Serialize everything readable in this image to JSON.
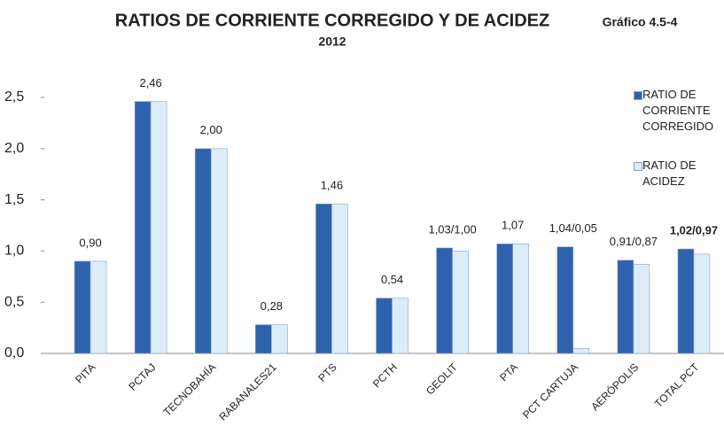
{
  "chart_data": {
    "type": "bar",
    "title": "RATIOS DE CORRIENTE CORREGIDO Y DE ACIDEZ",
    "subtitle": "2012",
    "annotation": "Gráfico 4.5-4",
    "categories": [
      "PITA",
      "PCTAJ",
      "TECNOBAHÍA",
      "RABANALES21",
      "PTS",
      "PCTH",
      "GEOLIT",
      "PTA",
      "PCT CARTUJA",
      "AERÓPOLIS",
      "TOTAL PCT"
    ],
    "series": [
      {
        "name": "RATIO DE CORRIENTE CORREGIDO",
        "color": "#2f62ad",
        "values": [
          0.9,
          2.46,
          2.0,
          0.28,
          1.46,
          0.54,
          1.03,
          1.07,
          1.04,
          0.91,
          1.02
        ],
        "value_labels": [
          "0,90",
          "2,46",
          "2,00",
          "0,28",
          "1,46",
          "0,54",
          "1,03/1,00",
          "1,07",
          "1,04/0,05",
          "0,91/0,87",
          "1,02/0,97"
        ]
      },
      {
        "name": "RATIO DE ACIDEZ",
        "color": "#dcedf8",
        "values": [
          0.9,
          2.46,
          2.0,
          0.28,
          1.46,
          0.54,
          1.0,
          1.07,
          0.05,
          0.87,
          0.97
        ]
      }
    ],
    "ylim": [
      0,
      2.5
    ],
    "yticks": [
      {
        "value": 0,
        "label": "0,0"
      },
      {
        "value": 0.5,
        "label": "0,5"
      },
      {
        "value": 1,
        "label": "1,0"
      },
      {
        "value": 1.5,
        "label": "1,5"
      },
      {
        "value": 2,
        "label": "2,0"
      },
      {
        "value": 2.5,
        "label": "2,5"
      }
    ],
    "grid": false,
    "legend": "top-right"
  }
}
